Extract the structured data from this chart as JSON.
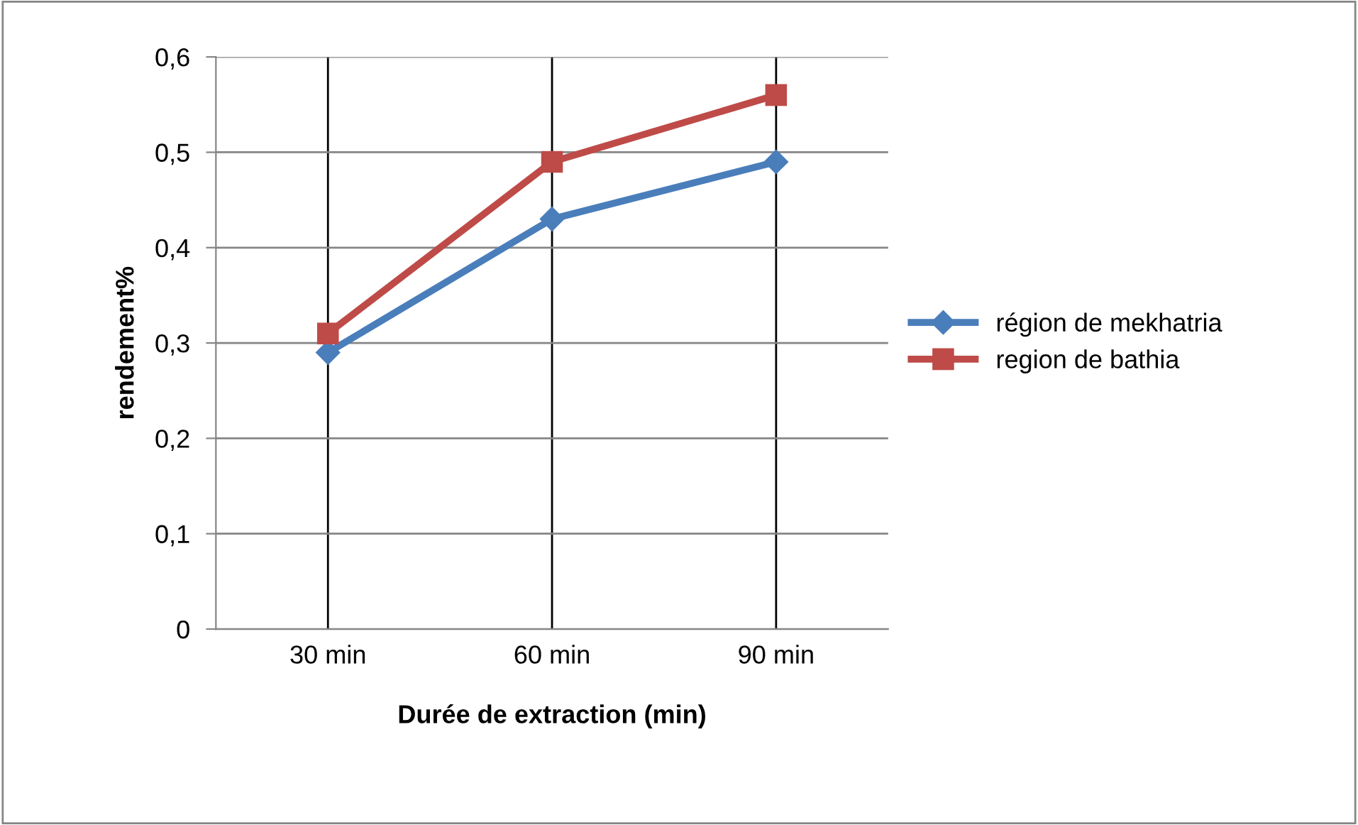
{
  "chart_data": {
    "type": "line",
    "xlabel": "Durée de extraction (min)",
    "ylabel": "rendement%",
    "categories": [
      "30 min",
      "60 min",
      "90 min"
    ],
    "series": [
      {
        "name": "région de mekhatria",
        "color": "#4a7ebb",
        "marker": "diamond",
        "values": [
          0.29,
          0.43,
          0.49
        ]
      },
      {
        "name": "region de bathia",
        "color": "#be4b48",
        "marker": "square",
        "values": [
          0.31,
          0.49,
          0.56
        ]
      }
    ],
    "ylim": [
      0,
      0.6
    ],
    "yticks": [
      0,
      {
        "value": 0.1,
        "label": "0,1"
      },
      {
        "value": 0.2,
        "label": "0,2"
      },
      {
        "value": 0.3,
        "label": "0,3"
      },
      {
        "value": 0.4,
        "label": "0,4"
      },
      {
        "value": 0.5,
        "label": "0,5"
      },
      {
        "value": 0.6,
        "label": "0,6"
      }
    ],
    "grid": true,
    "legend": "right",
    "line_style": "solid"
  }
}
